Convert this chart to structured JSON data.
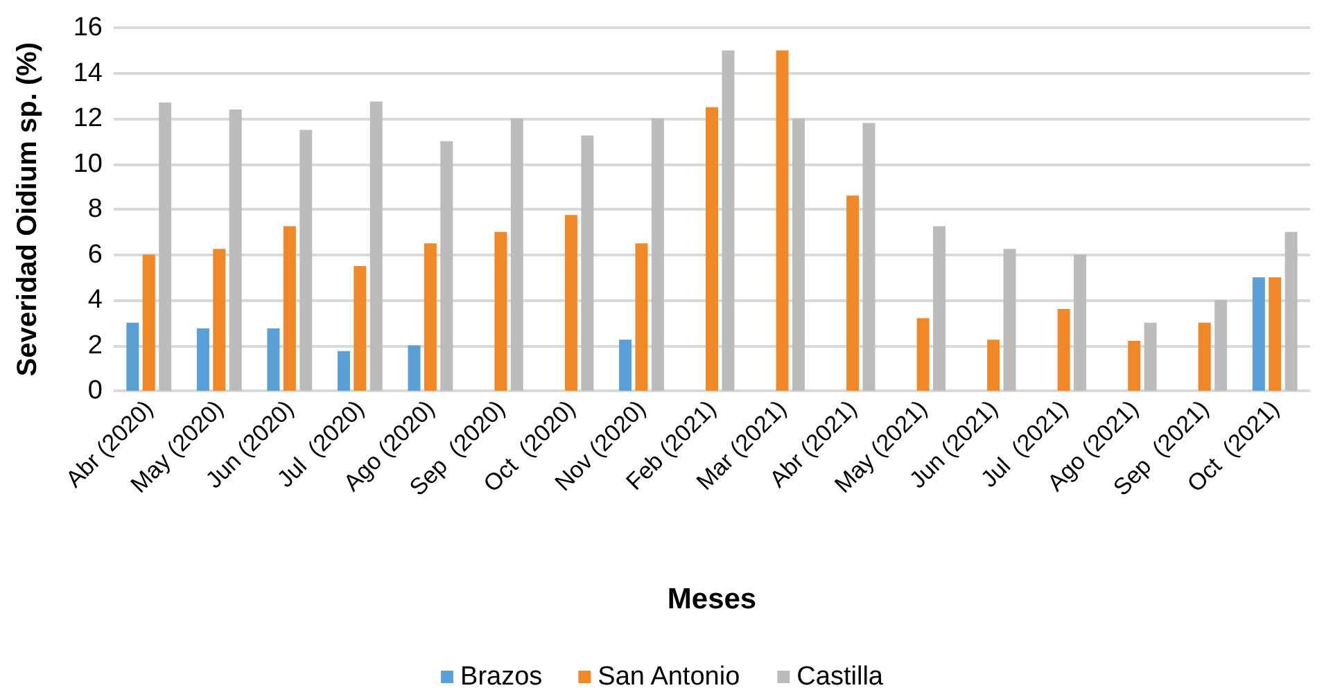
{
  "chart_data": {
    "type": "bar",
    "xlabel": "Meses",
    "ylabel": "Severidad Oidium sp. (%)",
    "categories": [
      "Abr (2020)",
      "May (2020)",
      "Jun (2020)",
      "Jul  (2020)",
      "Ago (2020)",
      "Sep  (2020)",
      "Oct  (2020)",
      "Nov (2020)",
      "Feb (2021)",
      "Mar (2021)",
      "Abr (2021)",
      "May (2021)",
      "Jun (2021)",
      "Jul  (2021)",
      "Ago (2021)",
      "Sep  (2021)",
      "Oct  (2021)"
    ],
    "series": [
      {
        "name": "Brazos",
        "color": "#5a9fd6",
        "values": [
          3,
          2.75,
          2.75,
          1.75,
          2,
          null,
          null,
          2.25,
          null,
          null,
          null,
          null,
          null,
          null,
          null,
          null,
          5
        ]
      },
      {
        "name": "San Antonio",
        "color": "#f0882a",
        "values": [
          6,
          6.25,
          7.25,
          5.5,
          6.5,
          7,
          7.75,
          6.5,
          12.5,
          15,
          8.6,
          3.2,
          2.25,
          3.6,
          2.2,
          3,
          5
        ]
      },
      {
        "name": "Castilla",
        "color": "#bcbcbc",
        "values": [
          12.7,
          12.4,
          11.5,
          12.75,
          11,
          12,
          11.25,
          12,
          15,
          12,
          11.8,
          7.25,
          6.25,
          6,
          3,
          4,
          7
        ]
      }
    ],
    "ylim": [
      0,
      16
    ],
    "yticks": [
      0,
      2,
      4,
      6,
      8,
      10,
      12,
      14,
      16
    ],
    "grid": "y",
    "legend": "bottom"
  }
}
